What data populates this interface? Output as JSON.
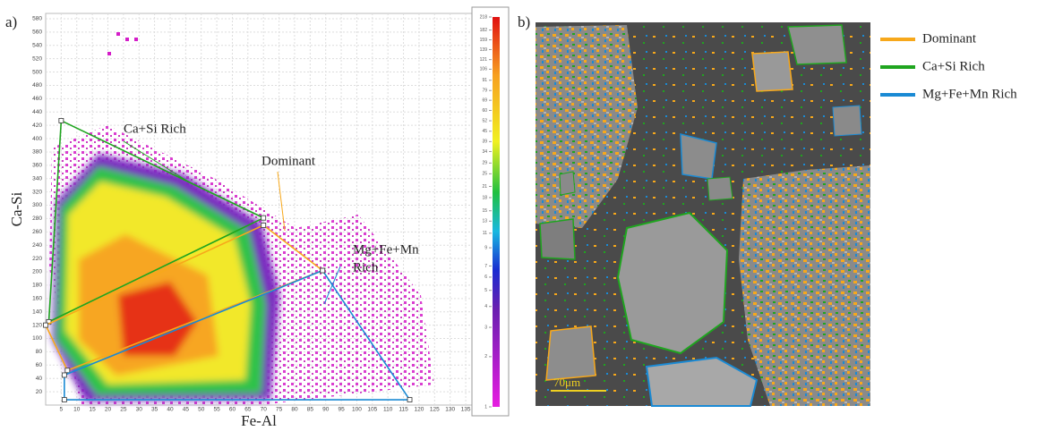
{
  "chart_data": {
    "type": "density",
    "panel_label": "a)",
    "xlabel": "Fe-Al",
    "ylabel": "Ca-Si",
    "xlim": [
      0,
      137
    ],
    "ylim": [
      0,
      588
    ],
    "xticks": [
      5,
      10,
      15,
      20,
      25,
      30,
      35,
      40,
      45,
      50,
      55,
      60,
      65,
      70,
      75,
      80,
      85,
      90,
      95,
      100,
      105,
      110,
      115,
      120,
      125,
      130,
      135
    ],
    "yticks": [
      20,
      40,
      60,
      80,
      100,
      120,
      140,
      160,
      180,
      200,
      220,
      240,
      260,
      280,
      300,
      320,
      340,
      360,
      380,
      400,
      420,
      440,
      460,
      480,
      500,
      520,
      540,
      560,
      580
    ],
    "grid": true,
    "polygons": [
      {
        "color": "#1fa51f",
        "x": [
          5,
          70,
          1
        ],
        "y": [
          427,
          281,
          125
        ]
      },
      {
        "color": "#f7a81b",
        "x": [
          0,
          70,
          89,
          7
        ],
        "y": [
          120,
          270,
          202,
          52
        ]
      },
      {
        "color": "#1a8ad4",
        "x": [
          6,
          89,
          117,
          6
        ],
        "y": [
          45,
          202,
          8,
          8
        ]
      }
    ],
    "annotations": [
      {
        "text": "Ca+Si Rich"
      },
      {
        "text": "Dominant"
      },
      {
        "lines": [
          "Mg+Fe+Mn",
          "Rich"
        ]
      }
    ],
    "colorbar": {
      "lim": [
        1,
        218
      ],
      "log": true,
      "ticks": [
        218,
        182,
        159,
        139,
        121,
        106,
        91,
        79,
        69,
        60,
        52,
        45,
        39,
        34,
        29,
        25,
        21,
        18,
        15,
        13,
        11,
        9,
        7,
        6,
        5,
        4,
        3,
        2,
        1
      ]
    }
  },
  "image": {
    "panel_label": "b)",
    "scale_bar": "70μm",
    "legend": [
      {
        "name": "Dominant",
        "color": "#f7a81b"
      },
      {
        "name": "Ca+Si Rich",
        "color": "#1fa51f"
      },
      {
        "name": "Mg+Fe+Mn Rich",
        "color": "#1a8ad4"
      }
    ]
  }
}
